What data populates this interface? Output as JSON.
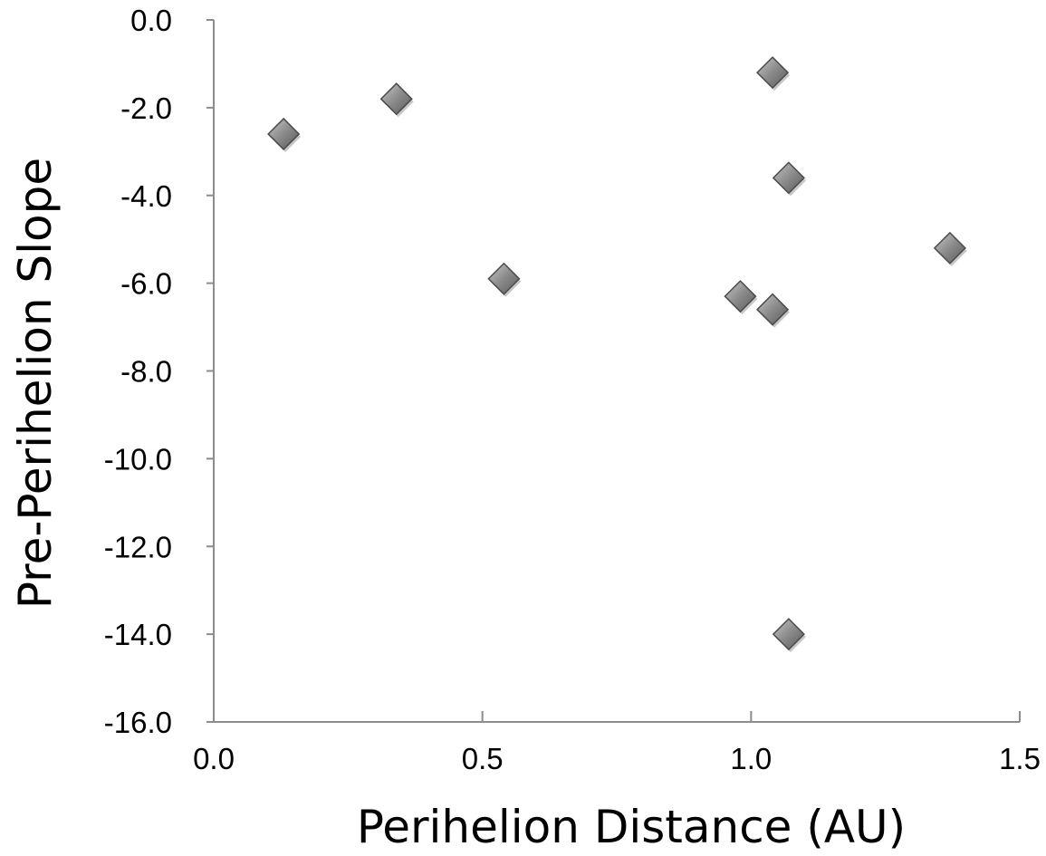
{
  "chart_data": {
    "type": "scatter",
    "title": "",
    "xlabel": "Perihelion Distance (AU)",
    "ylabel": "Pre-Perihelion Slope",
    "xlim": [
      0.0,
      1.5
    ],
    "ylim": [
      -16.0,
      0.0
    ],
    "x_ticks": [
      "0.0",
      "0.5",
      "1.0",
      "1.5"
    ],
    "y_ticks": [
      "0.0",
      "-2.0",
      "-4.0",
      "-6.0",
      "-8.0",
      "-10.0",
      "-12.0",
      "-14.0",
      "-16.0"
    ],
    "grid": false,
    "legend": "none",
    "marker": "diamond",
    "marker_color": "#808080",
    "series": [
      {
        "points": [
          {
            "x": 0.13,
            "y": -2.6
          },
          {
            "x": 0.34,
            "y": -1.8
          },
          {
            "x": 0.54,
            "y": -5.9
          },
          {
            "x": 0.98,
            "y": -6.3
          },
          {
            "x": 1.04,
            "y": -1.2
          },
          {
            "x": 1.04,
            "y": -6.6
          },
          {
            "x": 1.07,
            "y": -3.6
          },
          {
            "x": 1.07,
            "y": -14.0
          },
          {
            "x": 1.37,
            "y": -5.2
          }
        ]
      }
    ]
  }
}
